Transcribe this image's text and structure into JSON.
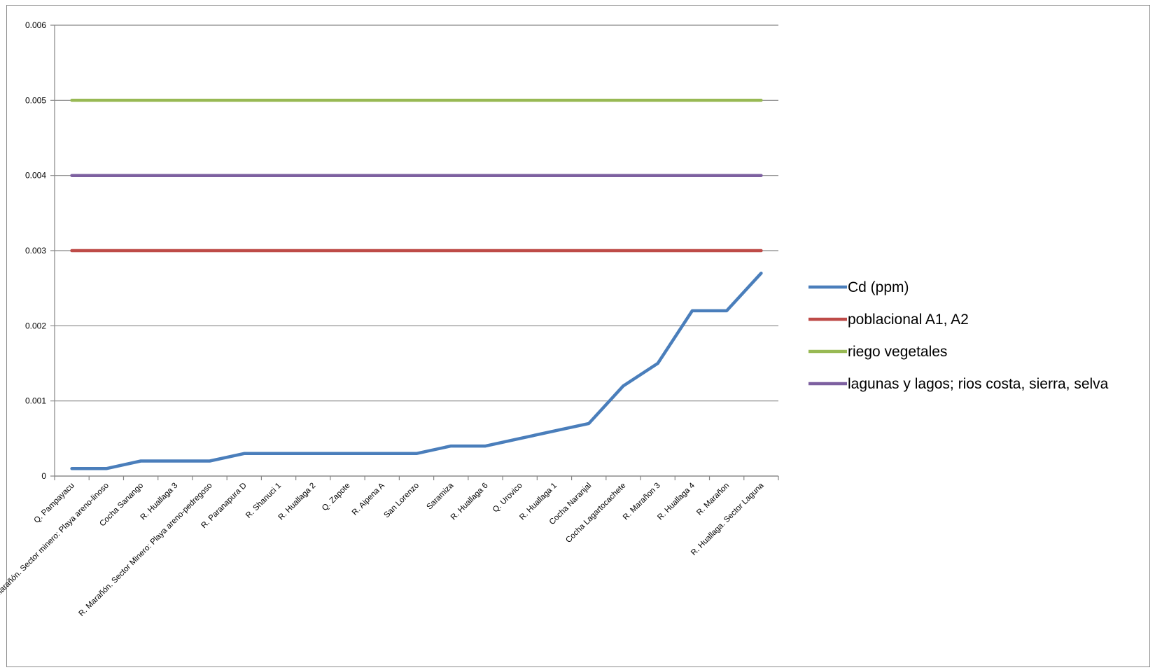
{
  "chart_data": {
    "type": "line",
    "title": "",
    "xlabel": "",
    "ylabel": "",
    "ylim": [
      0,
      0.006
    ],
    "y_ticks": [
      "0",
      "0.001",
      "0.002",
      "0.003",
      "0.004",
      "0.005",
      "0.006"
    ],
    "grid": true,
    "legend_position": "right",
    "categories": [
      "Q. Pampayacu",
      "R. Marañón. Sector minero: Playa areno-linoso",
      "Cocha Sanango",
      "R. Huallaga 3",
      "R. Marañón. Sector Minero: Playa areno-pedregoso",
      "R. Paranapura D",
      "R. Shanuci 1",
      "R. Huallaga 2",
      "Q. Zapote",
      "R. Aipena A",
      "San Lorenzo",
      "Saramiza",
      "R. Huallaga 6",
      "Q. Urovico",
      "R. Huallaga 1",
      "Cocha Naranjal",
      "Cocha Lagartocachete",
      "R. Marañon 3",
      "R. Huallaga 4",
      "R. Marañon",
      "R. Huallaga. Sector Laguna"
    ],
    "series": [
      {
        "name": "Cd (ppm)",
        "color": "#4a7ebb",
        "values": [
          0.0001,
          0.0001,
          0.0002,
          0.0002,
          0.0002,
          0.0003,
          0.0003,
          0.0003,
          0.0003,
          0.0003,
          0.0003,
          0.0004,
          0.0004,
          0.0005,
          0.0006,
          0.0007,
          0.0012,
          0.0015,
          0.0022,
          0.0022,
          0.0027
        ]
      },
      {
        "name": "poblacional A1, A2",
        "color": "#be4b48",
        "values": [
          0.003,
          0.003,
          0.003,
          0.003,
          0.003,
          0.003,
          0.003,
          0.003,
          0.003,
          0.003,
          0.003,
          0.003,
          0.003,
          0.003,
          0.003,
          0.003,
          0.003,
          0.003,
          0.003,
          0.003,
          0.003
        ]
      },
      {
        "name": "riego vegetales",
        "color": "#98b954",
        "values": [
          0.005,
          0.005,
          0.005,
          0.005,
          0.005,
          0.005,
          0.005,
          0.005,
          0.005,
          0.005,
          0.005,
          0.005,
          0.005,
          0.005,
          0.005,
          0.005,
          0.005,
          0.005,
          0.005,
          0.005,
          0.005
        ]
      },
      {
        "name": "lagunas y lagos; rios costa, sierra, selva",
        "color": "#7d60a0",
        "values": [
          0.004,
          0.004,
          0.004,
          0.004,
          0.004,
          0.004,
          0.004,
          0.004,
          0.004,
          0.004,
          0.004,
          0.004,
          0.004,
          0.004,
          0.004,
          0.004,
          0.004,
          0.004,
          0.004,
          0.004,
          0.004
        ]
      }
    ]
  }
}
